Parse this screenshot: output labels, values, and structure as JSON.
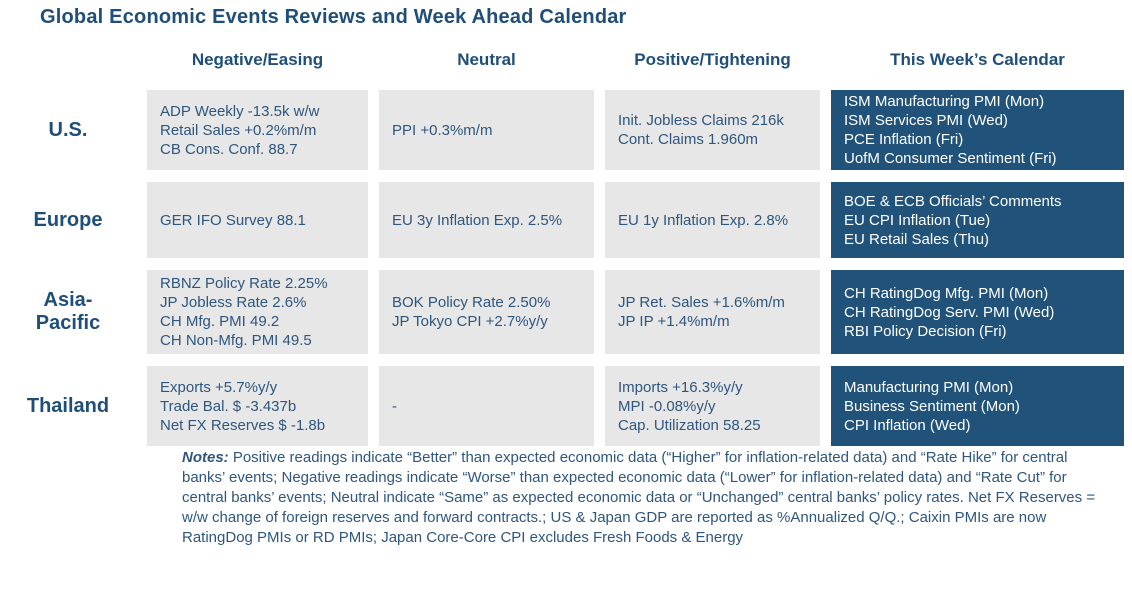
{
  "title": "Global Economic Events Reviews and Week Ahead Calendar",
  "colors": {
    "heading_blue": "#1f4e79",
    "body_text_blue": "#2e567e",
    "review_cell_bg": "#e7e7e7",
    "calendar_cell_bg": "#20527a",
    "calendar_text": "#ffffff"
  },
  "columns": [
    "Negative/Easing",
    "Neutral",
    "Positive/Tightening",
    "This Week’s Calendar"
  ],
  "rows": [
    {
      "region": "U.S.",
      "negative": [
        "ADP Weekly -13.5k w/w",
        "Retail Sales +0.2%m/m",
        "CB Cons. Conf. 88.7"
      ],
      "neutral": [
        "PPI +0.3%m/m"
      ],
      "positive": [
        "Init. Jobless Claims 216k",
        "Cont. Claims 1.960m"
      ],
      "calendar": [
        "ISM Manufacturing PMI (Mon)",
        "ISM Services PMI (Wed)",
        "PCE Inflation (Fri)",
        "UofM Consumer Sentiment (Fri)"
      ]
    },
    {
      "region": "Europe",
      "negative": [
        "GER IFO Survey 88.1"
      ],
      "neutral": [
        "EU 3y Inflation Exp. 2.5%"
      ],
      "positive": [
        "EU 1y Inflation Exp. 2.8%"
      ],
      "calendar": [
        "BOE & ECB Officials’ Comments",
        "EU CPI Inflation (Tue)",
        "EU Retail Sales (Thu)"
      ]
    },
    {
      "region": "Asia-Pacific",
      "negative": [
        "RBNZ Policy Rate 2.25%",
        "JP Jobless Rate 2.6%",
        "CH Mfg. PMI 49.2",
        "CH Non-Mfg. PMI 49.5"
      ],
      "neutral": [
        "BOK Policy Rate 2.50%",
        "JP Tokyo CPI +2.7%y/y"
      ],
      "positive": [
        "JP Ret. Sales +1.6%m/m",
        "JP IP +1.4%m/m"
      ],
      "calendar": [
        "CH RatingDog Mfg. PMI (Mon)",
        "CH RatingDog Serv. PMI (Wed)",
        "RBI Policy Decision (Fri)"
      ]
    },
    {
      "region": "Thailand",
      "negative": [
        "Exports +5.7%y/y",
        "Trade Bal. $ -3.437b",
        "Net FX Reserves $ -1.8b"
      ],
      "neutral": [
        "-"
      ],
      "positive": [
        "Imports +16.3%y/y",
        "MPI -0.08%y/y",
        "Cap. Utilization 58.25"
      ],
      "calendar": [
        "Manufacturing PMI (Mon)",
        "Business Sentiment (Mon)",
        "CPI Inflation (Wed)"
      ]
    }
  ],
  "notes": {
    "label": "Notes:",
    "text": " Positive readings indicate “Better” than expected economic data (“Higher” for inflation-related data) and “Rate Hike” for central banks’ events; Negative readings indicate “Worse” than expected economic data (“Lower” for inflation-related data) and “Rate Cut” for central banks’ events; Neutral indicate “Same” as expected economic data or “Unchanged” central banks’ policy rates. Net FX Reserves = w/w change of foreign reserves and forward contracts.; US & Japan GDP are reported as %Annualized Q/Q.; Caixin PMIs are now RatingDog PMIs or RD PMIs; Japan Core-Core CPI excludes Fresh Foods & Energy"
  }
}
